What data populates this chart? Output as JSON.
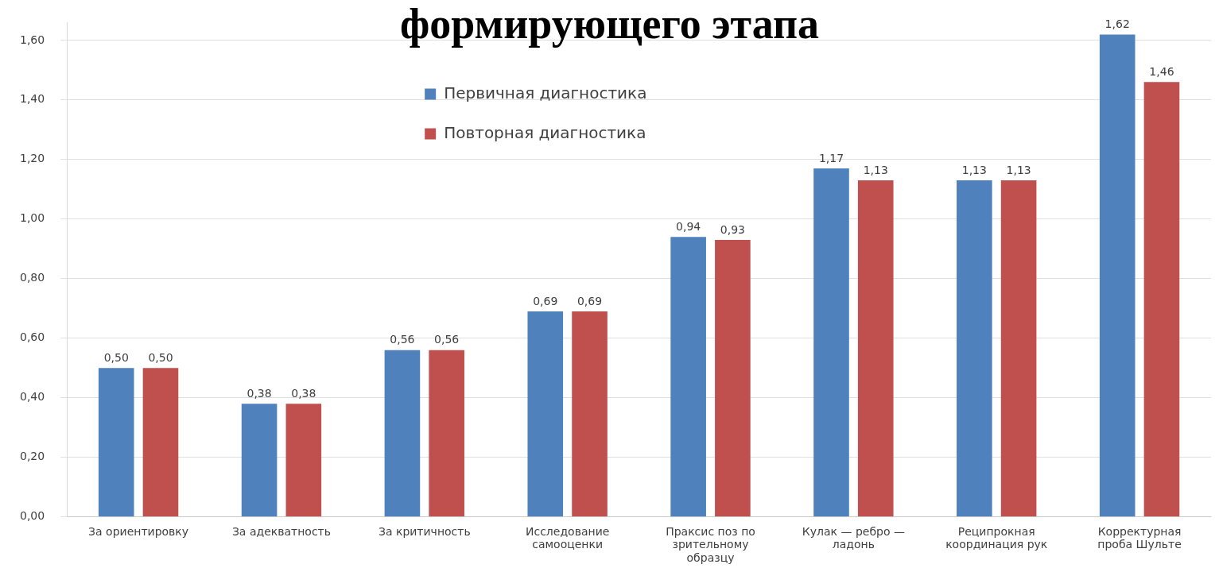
{
  "chart_data": {
    "type": "bar",
    "title": "формирующего этапа",
    "categories": [
      [
        "За ориентировку"
      ],
      [
        "За адекватность"
      ],
      [
        "За критичность"
      ],
      [
        "Исследование",
        "самооценки"
      ],
      [
        "Праксис поз по",
        "зрительному",
        "образцу"
      ],
      [
        "Кулак — ребро —",
        "ладонь"
      ],
      [
        "Реципрокная",
        "координация рук"
      ],
      [
        "Корректурная",
        "проба Шульте"
      ]
    ],
    "series": [
      {
        "name": "Первичная диагностика",
        "color": "#4f81bd",
        "values": [
          0.5,
          0.38,
          0.56,
          0.69,
          0.94,
          1.17,
          1.13,
          1.62
        ],
        "value_labels": [
          "0,50",
          "0,38",
          "0,56",
          "0,69",
          "0,94",
          "1,17",
          "1,13",
          "1,62"
        ]
      },
      {
        "name": "Повторная диагностика",
        "color": "#c0504d",
        "values": [
          0.5,
          0.38,
          0.56,
          0.69,
          0.93,
          1.13,
          1.13,
          1.46
        ],
        "value_labels": [
          "0,50",
          "0,38",
          "0,56",
          "0,69",
          "0,93",
          "1,13",
          "1,13",
          "1,46"
        ]
      }
    ],
    "ylim": [
      0,
      1.66
    ],
    "yticks": [
      {
        "value": 0,
        "label": "0,00"
      },
      {
        "value": 0.2,
        "label": "0,20"
      },
      {
        "value": 0.4,
        "label": "0,40"
      },
      {
        "value": 0.6,
        "label": "0,60"
      },
      {
        "value": 0.8,
        "label": "0,80"
      },
      {
        "value": 1.0,
        "label": "1,00"
      },
      {
        "value": 1.2,
        "label": "1,20"
      },
      {
        "value": 1.4,
        "label": "1,40"
      },
      {
        "value": 1.6,
        "label": "1,60"
      }
    ],
    "grid": "y",
    "legend": "top left"
  }
}
